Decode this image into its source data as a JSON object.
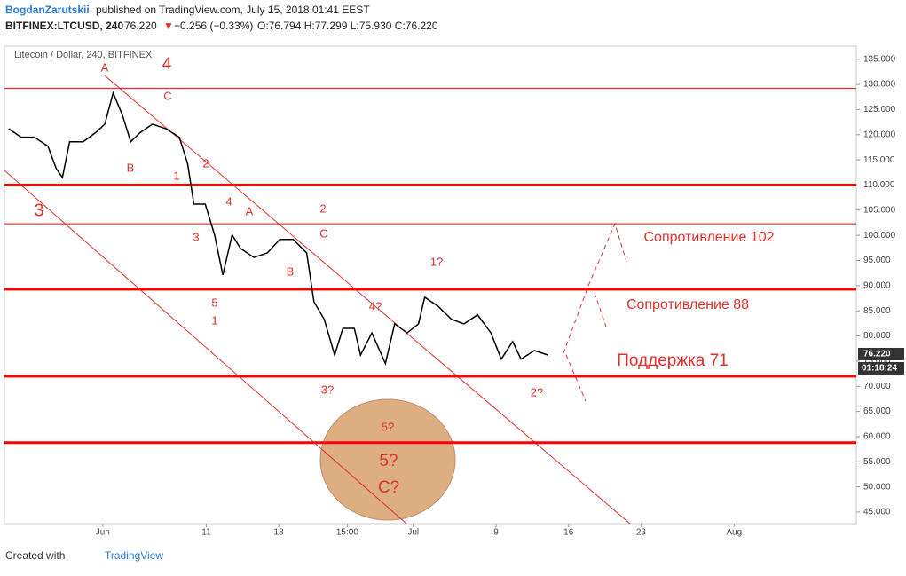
{
  "header": {
    "author": "BogdanZarutskii",
    "published": "published on TradingView.com, July 15, 2018 01:41 EEST",
    "symbol": "BITFINEX:LTCUSD, 240",
    "last": "76.220",
    "arrow": "▼",
    "change": "−0.256 (−0.33%)",
    "ohlc": "O:76.794 H:77.299 L:75.930 C:76.220"
  },
  "chart_data": {
    "type": "line",
    "title": "Litecoin / Dollar, 240, BITFINEX",
    "color": "#000000",
    "x": [
      -8.1,
      -6.9,
      -5.6,
      -4.3,
      -3.5,
      -2.9,
      -2.2,
      -0.9,
      0.3,
      1.2,
      2.0,
      2.9,
      3.7,
      4.6,
      5.8,
      7.1,
      8.4,
      9.2,
      9.8,
      10.9,
      11.8,
      12.6,
      13.5,
      14.3,
      15.6,
      16.9,
      18.1,
      19.4,
      20.7,
      21.4,
      22.4,
      23.4,
      24.2,
      25.3,
      25.9,
      27.0,
      28.3,
      29.2,
      30.4,
      31.5,
      32.1,
      33.4,
      34.7,
      35.9,
      37.2,
      38.5,
      39.5,
      40.6,
      41.4,
      42.7,
      44.0
    ],
    "values": [
      121.2,
      119.5,
      119.5,
      117.7,
      113.3,
      111.5,
      118.6,
      118.6,
      120.4,
      122.1,
      128.3,
      123.9,
      118.6,
      120.4,
      122.1,
      121.2,
      119.5,
      114.2,
      106.2,
      106.2,
      100.1,
      92.1,
      100.1,
      97.4,
      95.6,
      96.5,
      99.2,
      99.2,
      96.5,
      86.8,
      83.3,
      76.2,
      81.5,
      81.5,
      76.2,
      80.6,
      74.5,
      82.4,
      80.6,
      82.4,
      87.7,
      85.9,
      83.3,
      82.4,
      84.2,
      80.6,
      75.4,
      78.9,
      75.4,
      77.1,
      76.22
    ],
    "xlim": [
      -8.5,
      73.8
    ],
    "ylim": [
      42.7,
      137.6
    ],
    "xticks": [
      {
        "value": 1,
        "label": "Jun"
      },
      {
        "value": 11,
        "label": "11"
      },
      {
        "value": 18,
        "label": "18"
      },
      {
        "value": 24.625,
        "label": "15:00"
      },
      {
        "value": 31,
        "label": "Jul"
      },
      {
        "value": 39,
        "label": "9"
      },
      {
        "value": 46,
        "label": "16"
      },
      {
        "value": 53,
        "label": "23"
      },
      {
        "value": 62,
        "label": "Aug"
      }
    ],
    "yticks": [
      {
        "value": 45,
        "label": "45.000"
      },
      {
        "value": 50,
        "label": "50.000"
      },
      {
        "value": 55,
        "label": "55.000"
      },
      {
        "value": 60,
        "label": "60.000"
      },
      {
        "value": 65,
        "label": "65.000"
      },
      {
        "value": 70,
        "label": "70.000"
      },
      {
        "value": 75,
        "label": "75.000"
      },
      {
        "value": 80,
        "label": "80.000"
      },
      {
        "value": 85,
        "label": "85.000"
      },
      {
        "value": 90,
        "label": "90.000"
      },
      {
        "value": 95,
        "label": "95.000"
      },
      {
        "value": 100,
        "label": "100.000"
      },
      {
        "value": 105,
        "label": "105.000"
      },
      {
        "value": 110,
        "label": "110.000"
      },
      {
        "value": 115,
        "label": "115.000"
      },
      {
        "value": 120,
        "label": "120.000"
      },
      {
        "value": 125,
        "label": "125.000"
      },
      {
        "value": 130,
        "label": "130.000"
      },
      {
        "value": 135,
        "label": "135.000"
      }
    ],
    "strong_levels": [
      110,
      89.3,
      72,
      58.8
    ],
    "weak_levels": [
      129.2,
      102.3
    ],
    "level_color": "#ff0000",
    "price_marker": {
      "value": 76.22,
      "label": "76.220"
    },
    "countdown": "01:18:24",
    "annotations": [
      "A",
      "4",
      "C",
      "B",
      "1",
      "2",
      "3",
      "3",
      "4",
      "A",
      "2",
      "C",
      "B",
      "5",
      "1",
      "4?",
      "1?",
      "3?",
      "2?",
      "5?",
      "5?",
      "C?",
      "Сопротивление 102",
      "Сопротивление 88",
      "Поддержка 71"
    ]
  },
  "footer": {
    "created": "Created with",
    "brand": "TradingView"
  }
}
